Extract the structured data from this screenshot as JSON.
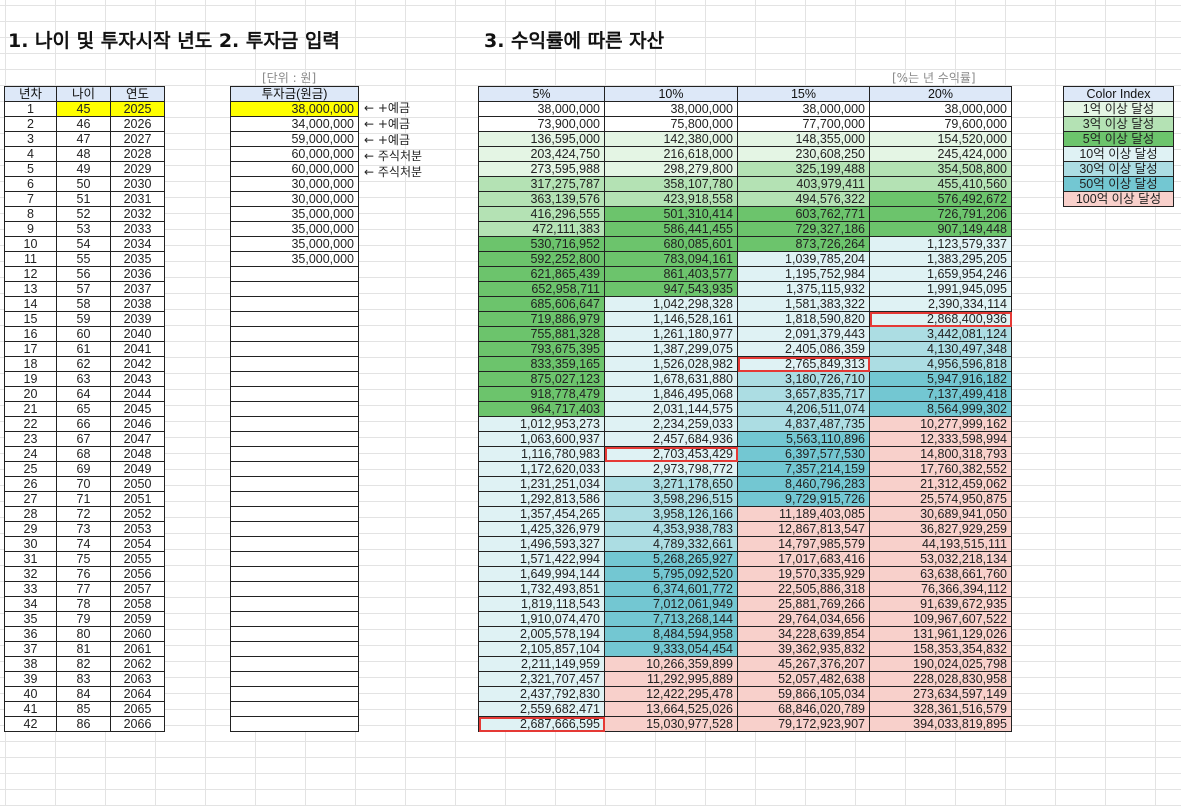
{
  "headings": {
    "h1": "1. 나이 및 투자시작 년도 2. 투자금 입력",
    "h3": "3. 수익률에 따른 자산"
  },
  "units": {
    "invest": "[단위 : 원]",
    "rate": "[%는 년 수익률]"
  },
  "left_table": {
    "headers": [
      "년차",
      "나이",
      "연도"
    ],
    "rows": [
      [
        "1",
        "45",
        "2025"
      ],
      [
        "2",
        "46",
        "2026"
      ],
      [
        "3",
        "47",
        "2027"
      ],
      [
        "4",
        "48",
        "2028"
      ],
      [
        "5",
        "49",
        "2029"
      ],
      [
        "6",
        "50",
        "2030"
      ],
      [
        "7",
        "51",
        "2031"
      ],
      [
        "8",
        "52",
        "2032"
      ],
      [
        "9",
        "53",
        "2033"
      ],
      [
        "10",
        "54",
        "2034"
      ],
      [
        "11",
        "55",
        "2035"
      ],
      [
        "12",
        "56",
        "2036"
      ],
      [
        "13",
        "57",
        "2037"
      ],
      [
        "14",
        "58",
        "2038"
      ],
      [
        "15",
        "59",
        "2039"
      ],
      [
        "16",
        "60",
        "2040"
      ],
      [
        "17",
        "61",
        "2041"
      ],
      [
        "18",
        "62",
        "2042"
      ],
      [
        "19",
        "63",
        "2043"
      ],
      [
        "20",
        "64",
        "2044"
      ],
      [
        "21",
        "65",
        "2045"
      ],
      [
        "22",
        "66",
        "2046"
      ],
      [
        "23",
        "67",
        "2047"
      ],
      [
        "24",
        "68",
        "2048"
      ],
      [
        "25",
        "69",
        "2049"
      ],
      [
        "26",
        "70",
        "2050"
      ],
      [
        "27",
        "71",
        "2051"
      ],
      [
        "28",
        "72",
        "2052"
      ],
      [
        "29",
        "73",
        "2053"
      ],
      [
        "30",
        "74",
        "2054"
      ],
      [
        "31",
        "75",
        "2055"
      ],
      [
        "32",
        "76",
        "2056"
      ],
      [
        "33",
        "77",
        "2057"
      ],
      [
        "34",
        "78",
        "2058"
      ],
      [
        "35",
        "79",
        "2059"
      ],
      [
        "36",
        "80",
        "2060"
      ],
      [
        "37",
        "81",
        "2061"
      ],
      [
        "38",
        "82",
        "2062"
      ],
      [
        "39",
        "83",
        "2063"
      ],
      [
        "40",
        "84",
        "2064"
      ],
      [
        "41",
        "85",
        "2065"
      ],
      [
        "42",
        "86",
        "2066"
      ]
    ]
  },
  "invest_table": {
    "header": "투자금(원금)",
    "values": [
      "38,000,000",
      "34,000,000",
      "59,000,000",
      "60,000,000",
      "60,000,000",
      "30,000,000",
      "30,000,000",
      "35,000,000",
      "35,000,000",
      "35,000,000",
      "35,000,000",
      "",
      "",
      "",
      "",
      "",
      "",
      "",
      "",
      "",
      "",
      "",
      "",
      "",
      "",
      "",
      "",
      "",
      "",
      "",
      "",
      "",
      "",
      "",
      "",
      "",
      "",
      "",
      "",
      "",
      "",
      ""
    ]
  },
  "notes": [
    "← +예금",
    "← +예금",
    "← +예금",
    "← 주식처분",
    "← 주식처분"
  ],
  "returns_table": {
    "headers": [
      "5%",
      "10%",
      "15%",
      "20%"
    ],
    "rows": [
      [
        "38,000,000",
        "38,000,000",
        "38,000,000",
        "38,000,000"
      ],
      [
        "73,900,000",
        "75,800,000",
        "77,700,000",
        "79,600,000"
      ],
      [
        "136,595,000",
        "142,380,000",
        "148,355,000",
        "154,520,000"
      ],
      [
        "203,424,750",
        "216,618,000",
        "230,608,250",
        "245,424,000"
      ],
      [
        "273,595,988",
        "298,279,800",
        "325,199,488",
        "354,508,800"
      ],
      [
        "317,275,787",
        "358,107,780",
        "403,979,411",
        "455,410,560"
      ],
      [
        "363,139,576",
        "423,918,558",
        "494,576,322",
        "576,492,672"
      ],
      [
        "416,296,555",
        "501,310,414",
        "603,762,771",
        "726,791,206"
      ],
      [
        "472,111,383",
        "586,441,455",
        "729,327,186",
        "907,149,448"
      ],
      [
        "530,716,952",
        "680,085,601",
        "873,726,264",
        "1,123,579,337"
      ],
      [
        "592,252,800",
        "783,094,161",
        "1,039,785,204",
        "1,383,295,205"
      ],
      [
        "621,865,439",
        "861,403,577",
        "1,195,752,984",
        "1,659,954,246"
      ],
      [
        "652,958,711",
        "947,543,935",
        "1,375,115,932",
        "1,991,945,095"
      ],
      [
        "685,606,647",
        "1,042,298,328",
        "1,581,383,322",
        "2,390,334,114"
      ],
      [
        "719,886,979",
        "1,146,528,161",
        "1,818,590,820",
        "2,868,400,936"
      ],
      [
        "755,881,328",
        "1,261,180,977",
        "2,091,379,443",
        "3,442,081,124"
      ],
      [
        "793,675,395",
        "1,387,299,075",
        "2,405,086,359",
        "4,130,497,348"
      ],
      [
        "833,359,165",
        "1,526,028,982",
        "2,765,849,313",
        "4,956,596,818"
      ],
      [
        "875,027,123",
        "1,678,631,880",
        "3,180,726,710",
        "5,947,916,182"
      ],
      [
        "918,778,479",
        "1,846,495,068",
        "3,657,835,717",
        "7,137,499,418"
      ],
      [
        "964,717,403",
        "2,031,144,575",
        "4,206,511,074",
        "8,564,999,302"
      ],
      [
        "1,012,953,273",
        "2,234,259,033",
        "4,837,487,735",
        "10,277,999,162"
      ],
      [
        "1,063,600,937",
        "2,457,684,936",
        "5,563,110,896",
        "12,333,598,994"
      ],
      [
        "1,116,780,983",
        "2,703,453,429",
        "6,397,577,530",
        "14,800,318,793"
      ],
      [
        "1,172,620,033",
        "2,973,798,772",
        "7,357,214,159",
        "17,760,382,552"
      ],
      [
        "1,231,251,034",
        "3,271,178,650",
        "8,460,796,283",
        "21,312,459,062"
      ],
      [
        "1,292,813,586",
        "3,598,296,515",
        "9,729,915,726",
        "25,574,950,875"
      ],
      [
        "1,357,454,265",
        "3,958,126,166",
        "11,189,403,085",
        "30,689,941,050"
      ],
      [
        "1,425,326,979",
        "4,353,938,783",
        "12,867,813,547",
        "36,827,929,259"
      ],
      [
        "1,496,593,327",
        "4,789,332,661",
        "14,797,985,579",
        "44,193,515,111"
      ],
      [
        "1,571,422,994",
        "5,268,265,927",
        "17,017,683,416",
        "53,032,218,134"
      ],
      [
        "1,649,994,144",
        "5,795,092,520",
        "19,570,335,929",
        "63,638,661,760"
      ],
      [
        "1,732,493,851",
        "6,374,601,772",
        "22,505,886,318",
        "76,366,394,112"
      ],
      [
        "1,819,118,543",
        "7,012,061,949",
        "25,881,769,266",
        "91,639,672,935"
      ],
      [
        "1,910,074,470",
        "7,713,268,144",
        "29,764,034,656",
        "109,967,607,522"
      ],
      [
        "2,005,578,194",
        "8,484,594,958",
        "34,228,639,854",
        "131,961,129,026"
      ],
      [
        "2,105,857,104",
        "9,333,054,454",
        "39,362,935,832",
        "158,353,354,832"
      ],
      [
        "2,211,149,959",
        "10,266,359,899",
        "45,267,376,207",
        "190,024,025,798"
      ],
      [
        "2,321,707,457",
        "11,292,995,889",
        "52,057,482,638",
        "228,028,830,958"
      ],
      [
        "2,437,792,830",
        "12,422,295,478",
        "59,866,105,034",
        "273,634,597,149"
      ],
      [
        "2,559,682,471",
        "13,664,525,026",
        "68,846,020,789",
        "328,361,516,579"
      ],
      [
        "2,687,666,595",
        "15,030,977,528",
        "79,172,923,907",
        "394,033,819,895"
      ]
    ],
    "highlighted_cells": [
      [
        14,
        3
      ],
      [
        17,
        2
      ],
      [
        23,
        1
      ],
      [
        41,
        0
      ]
    ]
  },
  "color_index": {
    "header": "Color Index",
    "items": [
      {
        "label": "1억 이상 달성",
        "color": "#e4f5e4"
      },
      {
        "label": "3억 이상 달성",
        "color": "#b4e2b4"
      },
      {
        "label": "5억 이상 달성",
        "color": "#6cc46c"
      },
      {
        "label": "10억 이상 달성",
        "color": "#dff2f4"
      },
      {
        "label": "30억 이상 달성",
        "color": "#acdde3"
      },
      {
        "label": "50억 이상 달성",
        "color": "#73c7d2"
      },
      {
        "label": "100억 이상 달성",
        "color": "#f8d0cb"
      }
    ]
  },
  "colors": {
    "input_highlight": "#ffff00",
    "header_fill": "#dde8f8",
    "marker_outline": "#e53935"
  }
}
